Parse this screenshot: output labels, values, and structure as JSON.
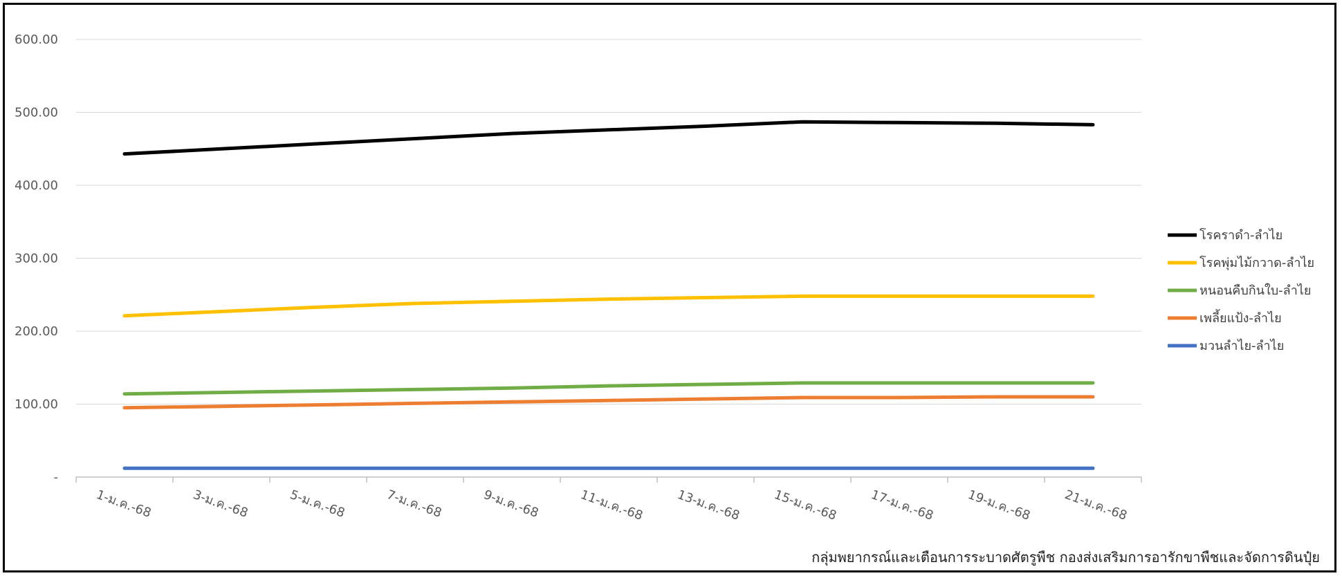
{
  "chart_data": {
    "type": "line",
    "title": "",
    "xlabel": "",
    "ylabel": "",
    "categories": [
      "1-ม.ค.-68",
      "3-ม.ค.-68",
      "5-ม.ค.-68",
      "7-ม.ค.-68",
      "9-ม.ค.-68",
      "11-ม.ค.-68",
      "13-ม.ค.-68",
      "15-ม.ค.-68",
      "17-ม.ค.-68",
      "19-ม.ค.-68",
      "21-ม.ค.-68"
    ],
    "ylim": [
      0,
      600
    ],
    "yticks": [
      0,
      100,
      200,
      300,
      400,
      500,
      600
    ],
    "ytick_labels": [
      "-",
      "100.00",
      "200.00",
      "300.00",
      "400.00",
      "500.00",
      "600.00"
    ],
    "grid": "horizontal",
    "legend_position": "right",
    "series": [
      {
        "name": "โรคราดำ-ลำไย",
        "color": "#000000",
        "values": [
          443,
          450,
          457,
          464,
          471,
          476,
          481,
          487,
          486,
          485,
          483
        ]
      },
      {
        "name": "โรคพุ่มไม้กวาด-ลำไย",
        "color": "#FFC000",
        "values": [
          221,
          227,
          233,
          238,
          241,
          244,
          246,
          248,
          248,
          248,
          248
        ]
      },
      {
        "name": "หนอนคืบกินใบ-ลำไย",
        "color": "#70AD47",
        "values": [
          114,
          116,
          118,
          120,
          122,
          125,
          127,
          129,
          129,
          129,
          129
        ]
      },
      {
        "name": "เพลี้ยแป้ง-ลำไย",
        "color": "#ED7D31",
        "values": [
          95,
          97,
          99,
          101,
          103,
          105,
          107,
          109,
          109,
          110,
          110
        ]
      },
      {
        "name": "มวนลำไย-ลำไย",
        "color": "#4472C4",
        "values": [
          12,
          12,
          12,
          12,
          12,
          12,
          12,
          12,
          12,
          12,
          12
        ]
      }
    ]
  },
  "source_note": "กลุ่มพยากรณ์และเตือนการระบาดศัตรูพืช กองส่งเสริมการอารักขาพืชและจัดการดินปุ๋ย"
}
